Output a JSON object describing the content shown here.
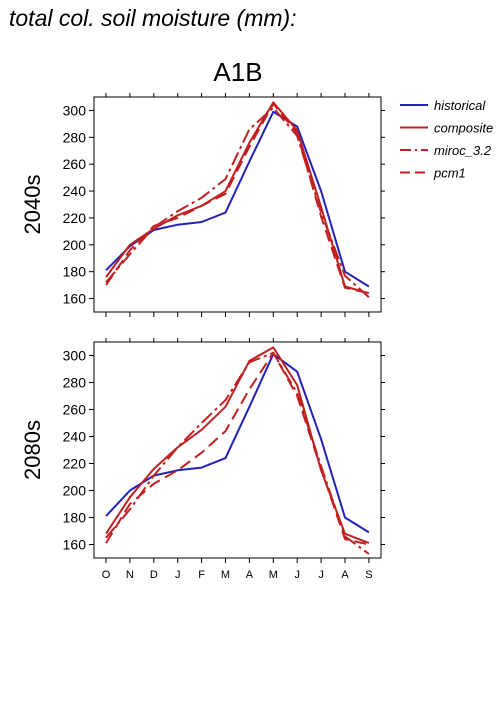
{
  "page": {
    "title": "total col. soil moisture (mm):"
  },
  "chart_data": {
    "type": "line",
    "title": "A1B",
    "months": [
      "O",
      "N",
      "D",
      "J",
      "F",
      "M",
      "A",
      "M",
      "J",
      "J",
      "A",
      "S"
    ],
    "yticks": [
      160,
      180,
      200,
      220,
      240,
      260,
      280,
      300
    ],
    "ylim": [
      150,
      310
    ],
    "legend": {
      "placement": "right",
      "entries": [
        {
          "name": "historical",
          "color": "#2222bb",
          "dash": "solid"
        },
        {
          "name": "composite",
          "color": "#c02020",
          "dash": "solid"
        },
        {
          "name": "miroc_3.2",
          "color": "#c02020",
          "dash": "dashdot"
        },
        {
          "name": "pcm1",
          "color": "#c02020",
          "dash": "dashed"
        }
      ]
    },
    "panels": [
      {
        "ylabel": "2040s",
        "series": [
          {
            "name": "historical",
            "values": [
              181,
              199,
              211,
              215,
              217,
              224,
              262,
              299,
              288,
              240,
              180,
              169
            ]
          },
          {
            "name": "composite",
            "values": [
              176,
              200,
              212,
              222,
              229,
              240,
              276,
              306,
              285,
              228,
              169,
              164
            ]
          },
          {
            "name": "miroc_3.2",
            "values": [
              172,
              193,
              213,
              225,
              235,
              249,
              286,
              302,
              281,
              224,
              177,
              161
            ]
          },
          {
            "name": "pcm1",
            "values": [
              170,
              196,
              214,
              220,
              229,
              238,
              273,
              305,
              283,
              221,
              168,
              164
            ]
          }
        ]
      },
      {
        "ylabel": "2080s",
        "series": [
          {
            "name": "historical",
            "values": [
              181,
              200,
              211,
              215,
              217,
              224,
              262,
              301,
              288,
              238,
              180,
              169
            ]
          },
          {
            "name": "composite",
            "values": [
              168,
              195,
              216,
              232,
              245,
              262,
              296,
              306,
              278,
              215,
              168,
              161
            ]
          },
          {
            "name": "miroc_3.2",
            "values": [
              165,
              186,
              211,
              232,
              250,
              267,
              295,
              302,
              272,
              218,
              166,
              153
            ]
          },
          {
            "name": "pcm1",
            "values": [
              161,
              190,
              205,
              215,
              228,
              244,
              275,
              302,
              270,
              216,
              164,
              160
            ]
          }
        ]
      }
    ]
  }
}
